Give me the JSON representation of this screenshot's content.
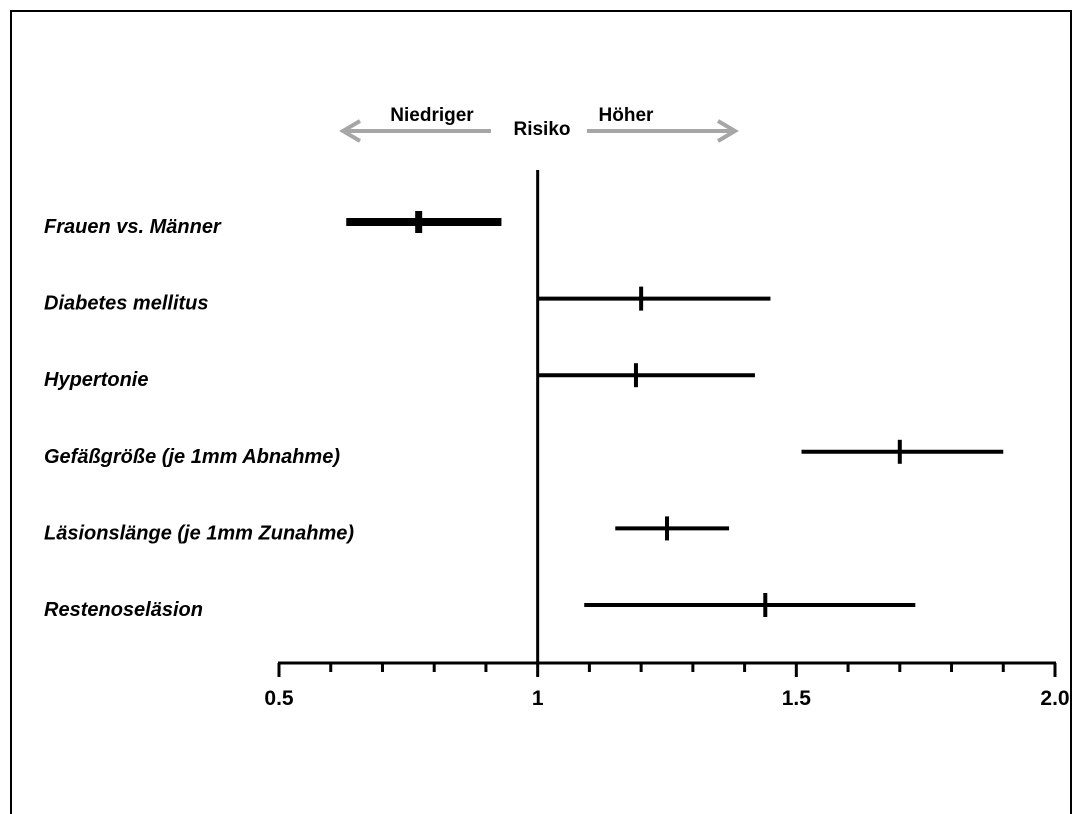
{
  "chart_data": {
    "type": "forest",
    "direction": {
      "lower_label": "Niedriger",
      "center_label": "Risiko",
      "higher_label": "Höher",
      "arrow_color": "#a6a6a6"
    },
    "rows": [
      {
        "label": "Frauen vs. Männer",
        "estimate": 0.77,
        "lower": 0.63,
        "upper": 0.93,
        "emphasis": true
      },
      {
        "label": "Diabetes mellitus",
        "estimate": 1.2,
        "lower": 1.0,
        "upper": 1.45,
        "emphasis": false
      },
      {
        "label": "Hypertonie",
        "estimate": 1.19,
        "lower": 1.0,
        "upper": 1.42,
        "emphasis": false
      },
      {
        "label": "Gefäßgröße (je 1mm Abnahme)",
        "estimate": 1.7,
        "lower": 1.51,
        "upper": 1.9,
        "emphasis": false
      },
      {
        "label": "Läsionslänge (je 1mm Zunahme)",
        "estimate": 1.25,
        "lower": 1.15,
        "upper": 1.37,
        "emphasis": false
      },
      {
        "label": "Restenoseläsion",
        "estimate": 1.44,
        "lower": 1.09,
        "upper": 1.73,
        "emphasis": false
      }
    ],
    "x_axis": {
      "xlim": [
        0.5,
        2.0
      ],
      "reference_line": 1,
      "major_ticks": [
        0.5,
        1,
        1.5,
        2.0
      ],
      "tick_labels": [
        "0.5",
        "1",
        "1.5",
        "2.0"
      ],
      "minor_ticks": [
        0.6,
        0.7,
        0.8,
        0.9,
        1.1,
        1.2,
        1.3,
        1.4,
        1.6,
        1.7,
        1.8,
        1.9
      ]
    },
    "xlabel": "",
    "ylabel": "",
    "title": "",
    "grid": false,
    "legend": false
  }
}
